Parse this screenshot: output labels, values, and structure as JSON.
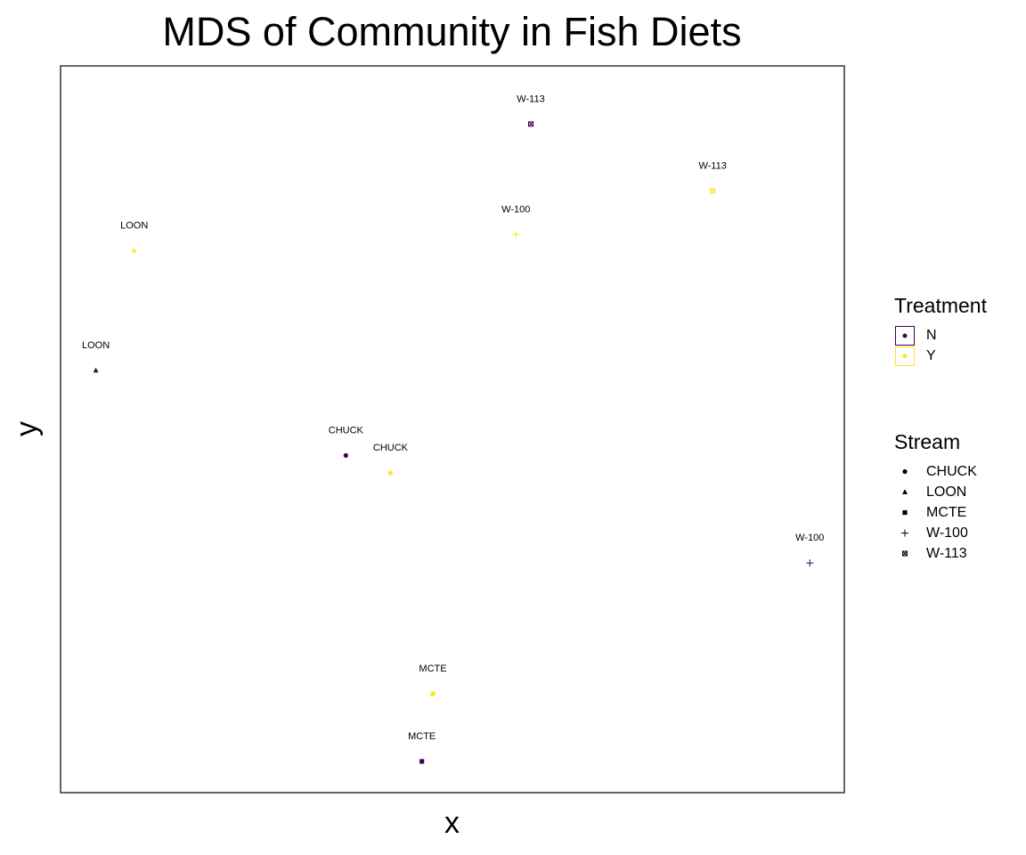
{
  "chart_data": {
    "type": "scatter",
    "title": "MDS of Community in Fish Diets",
    "xlabel": "x",
    "ylabel": "y",
    "xlim": [
      0,
      100
    ],
    "ylim": [
      0,
      100
    ],
    "grid": false,
    "legend_position": "right",
    "colors": {
      "N": "#440154",
      "Y": "#FDE725"
    },
    "points": [
      {
        "label": "W-113",
        "stream": "W-113",
        "treatment": "N",
        "x": 60.0,
        "y": 92.0
      },
      {
        "label": "W-113",
        "stream": "W-113",
        "treatment": "Y",
        "x": 83.2,
        "y": 82.8
      },
      {
        "label": "W-100",
        "stream": "W-100",
        "treatment": "Y",
        "x": 58.1,
        "y": 76.8
      },
      {
        "label": "LOON",
        "stream": "LOON",
        "treatment": "Y",
        "x": 9.4,
        "y": 74.6
      },
      {
        "label": "LOON",
        "stream": "LOON",
        "treatment": "N",
        "x": 4.5,
        "y": 58.1
      },
      {
        "label": "CHUCK",
        "stream": "CHUCK",
        "treatment": "N",
        "x": 36.4,
        "y": 46.4
      },
      {
        "label": "CHUCK",
        "stream": "CHUCK",
        "treatment": "Y",
        "x": 42.1,
        "y": 44.0
      },
      {
        "label": "W-100",
        "stream": "W-100",
        "treatment": "N",
        "x": 95.6,
        "y": 31.6
      },
      {
        "label": "MCTE",
        "stream": "MCTE",
        "treatment": "Y",
        "x": 47.5,
        "y": 13.6
      },
      {
        "label": "MCTE",
        "stream": "MCTE",
        "treatment": "N",
        "x": 46.1,
        "y": 4.3
      }
    ]
  },
  "legend": {
    "treatment_title": "Treatment",
    "treatment": [
      {
        "label": "N",
        "color": "#440154"
      },
      {
        "label": "Y",
        "color": "#FDE725"
      }
    ],
    "stream_title": "Stream",
    "stream": [
      {
        "label": "CHUCK",
        "shape": "circle"
      },
      {
        "label": "LOON",
        "shape": "triangle"
      },
      {
        "label": "MCTE",
        "shape": "square"
      },
      {
        "label": "W-100",
        "shape": "plus"
      },
      {
        "label": "W-113",
        "shape": "square-cross"
      }
    ]
  }
}
